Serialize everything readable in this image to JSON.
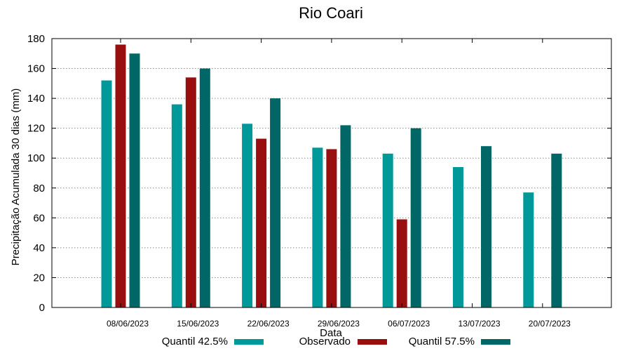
{
  "chart_data": {
    "type": "bar",
    "title": "Rio Coari",
    "xlabel": "Data",
    "ylabel": "Precipitação Acumulada 30 dias (mm)",
    "ylim": [
      0,
      180
    ],
    "yticks": [
      0,
      20,
      40,
      60,
      80,
      100,
      120,
      140,
      160,
      180
    ],
    "grid": true,
    "legend_position": "bottom",
    "categories": [
      "08/06/2023",
      "15/06/2023",
      "22/06/2023",
      "29/06/2023",
      "06/07/2023",
      "13/07/2023",
      "20/07/2023"
    ],
    "series": [
      {
        "name": "Quantil 42.5%",
        "color": "#009999",
        "values": [
          152,
          136,
          123,
          107,
          103,
          94,
          77
        ]
      },
      {
        "name": "Observado",
        "color": "#990f0f",
        "values": [
          176,
          154,
          113,
          106,
          59,
          null,
          null
        ]
      },
      {
        "name": "Quantil 57.5%",
        "color": "#006666",
        "values": [
          170,
          160,
          140,
          122,
          120,
          108,
          103
        ]
      }
    ]
  }
}
